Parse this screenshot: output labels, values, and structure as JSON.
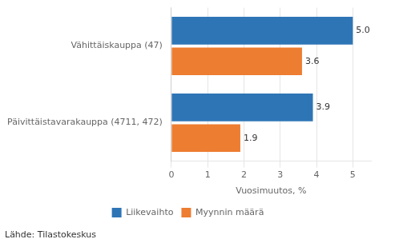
{
  "chart_data": {
    "type": "bar",
    "orientation": "horizontal",
    "categories": [
      "Päivittäistavarakauppa (4711, 472)",
      "Vähittäiskauppa (47)"
    ],
    "series": [
      {
        "name": "Liikevaihto",
        "color": "#2E75B6",
        "values": [
          3.9,
          5.0
        ],
        "value_labels": [
          "3.9",
          "5.0"
        ]
      },
      {
        "name": "Myynnin määrä",
        "color": "#ED7D31",
        "values": [
          1.9,
          3.6
        ],
        "value_labels": [
          "1.9",
          "3.6"
        ]
      }
    ],
    "xlabel": "Vuosimuutos, %",
    "xlim": [
      0,
      5.5
    ],
    "xticks": [
      0,
      1,
      2,
      3,
      4,
      5
    ],
    "grid": true,
    "legend": "bottom",
    "data_labels": true,
    "annotations": [
      "Lähde: Tilastokeskus"
    ]
  }
}
